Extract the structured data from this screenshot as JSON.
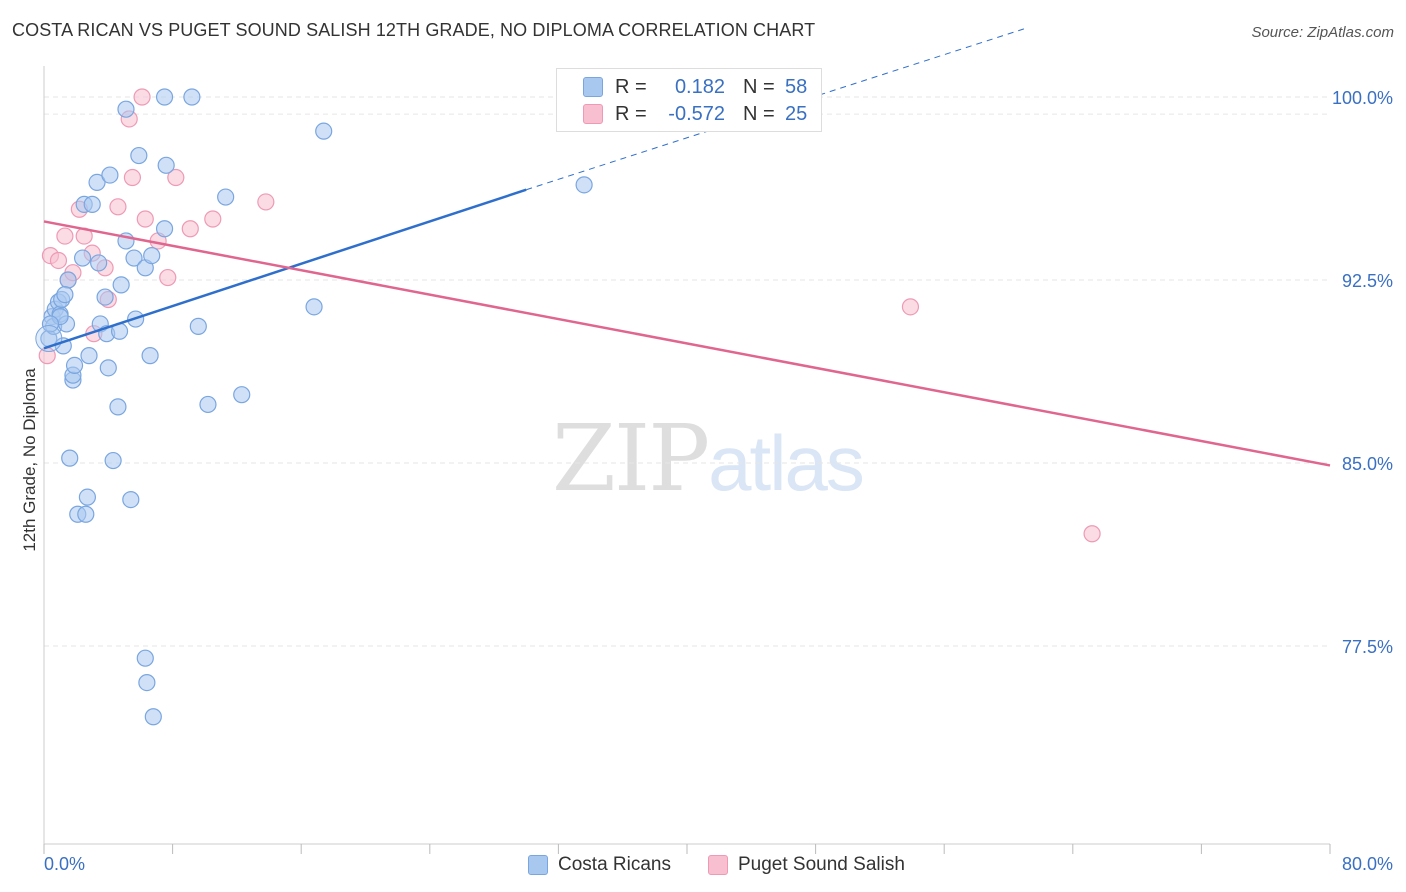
{
  "title": "COSTA RICAN VS PUGET SOUND SALISH 12TH GRADE, NO DIPLOMA CORRELATION CHART",
  "source": "Source: ZipAtlas.com",
  "watermark": {
    "part1": "ZIP",
    "part2": "atlas"
  },
  "colors": {
    "blue_fill": "#a9c8f0",
    "blue_stroke": "#7aa6e0",
    "blue_line": "#2f6fcc",
    "pink_fill": "#f7bfd0",
    "pink_stroke": "#ee9ab5",
    "pink_line": "#e06690",
    "tick_label": "#3a70c2",
    "grid": "#e6e6e6"
  },
  "legend_top": {
    "rows": [
      {
        "r_label": "R =",
        "r_value": "0.182",
        "n_label": "N =",
        "n_value": "58"
      },
      {
        "r_label": "R =",
        "r_value": "-0.572",
        "n_label": "N =",
        "n_value": "25"
      }
    ]
  },
  "legend_bottom": {
    "items": [
      "Costa Ricans",
      "Puget Sound Salish"
    ]
  },
  "chart_data": {
    "type": "scatter",
    "title": "COSTA RICAN VS PUGET SOUND SALISH 12TH GRADE, NO DIPLOMA CORRELATION CHART",
    "xlabel": "",
    "ylabel": "12th Grade, No Diploma",
    "xlim": [
      0,
      80
    ],
    "ylim": [
      70.0,
      101.0
    ],
    "x_tick_labels": [
      "0.0%",
      "80.0%"
    ],
    "y_ticks": [
      77.5,
      85.0,
      92.5,
      100.0
    ],
    "y_tick_labels": [
      "77.5%",
      "85.0%",
      "92.5%",
      "100.0%"
    ],
    "grid": "horizontal dashed",
    "legend_position": "top-center and bottom",
    "series": [
      {
        "name": "Costa Ricans",
        "color": "#a9c8f0",
        "r": 0.182,
        "n": 58,
        "trend": {
          "x": [
            0.0,
            30.0
          ],
          "y": [
            89.7,
            96.2
          ],
          "extended_x": [
            30.0,
            61.0
          ],
          "extended_y": [
            96.2,
            102.8
          ]
        },
        "points": [
          [
            0.3,
            90.1
          ],
          [
            0.5,
            91.0
          ],
          [
            0.6,
            90.6
          ],
          [
            0.7,
            91.3
          ],
          [
            0.9,
            91.6
          ],
          [
            1.0,
            91.1
          ],
          [
            1.2,
            89.8
          ],
          [
            1.1,
            91.7
          ],
          [
            1.4,
            90.7
          ],
          [
            1.5,
            92.5
          ],
          [
            1.6,
            85.2
          ],
          [
            1.8,
            88.4
          ],
          [
            1.8,
            88.6
          ],
          [
            1.9,
            89.0
          ],
          [
            2.1,
            82.9
          ],
          [
            2.4,
            93.4
          ],
          [
            2.5,
            95.6
          ],
          [
            2.6,
            82.9
          ],
          [
            2.7,
            83.6
          ],
          [
            2.8,
            89.4
          ],
          [
            3.0,
            95.6
          ],
          [
            3.3,
            96.5
          ],
          [
            3.4,
            93.2
          ],
          [
            3.5,
            90.7
          ],
          [
            3.8,
            91.8
          ],
          [
            3.9,
            90.3
          ],
          [
            4.0,
            88.9
          ],
          [
            4.1,
            96.8
          ],
          [
            4.3,
            85.1
          ],
          [
            4.7,
            90.4
          ],
          [
            4.6,
            87.3
          ],
          [
            4.8,
            92.3
          ],
          [
            5.1,
            99.5
          ],
          [
            5.1,
            94.1
          ],
          [
            5.4,
            83.5
          ],
          [
            5.6,
            93.4
          ],
          [
            5.7,
            90.9
          ],
          [
            5.9,
            97.6
          ],
          [
            6.3,
            93.0
          ],
          [
            6.3,
            77.0
          ],
          [
            6.4,
            76.0
          ],
          [
            6.8,
            74.6
          ],
          [
            6.7,
            93.5
          ],
          [
            6.6,
            89.4
          ],
          [
            7.5,
            100.0
          ],
          [
            7.5,
            94.6
          ],
          [
            7.6,
            97.2
          ],
          [
            9.6,
            90.6
          ],
          [
            10.2,
            87.4
          ],
          [
            11.3,
            95.9
          ],
          [
            12.3,
            87.8
          ],
          [
            16.8,
            91.4
          ],
          [
            17.4,
            98.6
          ],
          [
            33.6,
            96.4
          ],
          [
            9.2,
            100.0
          ],
          [
            1.0,
            91.0
          ],
          [
            0.4,
            90.7
          ],
          [
            1.3,
            91.9
          ]
        ]
      },
      {
        "name": "Puget Sound Salish",
        "color": "#f7bfd0",
        "r": -0.572,
        "n": 25,
        "trend": {
          "x": [
            0.0,
            80.0
          ],
          "y": [
            94.9,
            84.9
          ]
        },
        "points": [
          [
            0.2,
            89.4
          ],
          [
            0.4,
            93.5
          ],
          [
            0.9,
            93.3
          ],
          [
            1.3,
            94.3
          ],
          [
            1.5,
            92.5
          ],
          [
            1.8,
            92.8
          ],
          [
            2.2,
            95.4
          ],
          [
            2.5,
            94.3
          ],
          [
            3.0,
            93.6
          ],
          [
            3.1,
            90.3
          ],
          [
            3.8,
            93.0
          ],
          [
            4.0,
            91.7
          ],
          [
            4.6,
            95.5
          ],
          [
            5.3,
            99.1
          ],
          [
            5.5,
            96.7
          ],
          [
            6.1,
            100.0
          ],
          [
            6.3,
            95.0
          ],
          [
            7.1,
            94.1
          ],
          [
            7.7,
            92.6
          ],
          [
            8.2,
            96.7
          ],
          [
            9.1,
            94.6
          ],
          [
            10.5,
            95.0
          ],
          [
            13.8,
            95.7
          ],
          [
            53.9,
            91.4
          ],
          [
            65.2,
            82.1
          ]
        ]
      }
    ]
  }
}
